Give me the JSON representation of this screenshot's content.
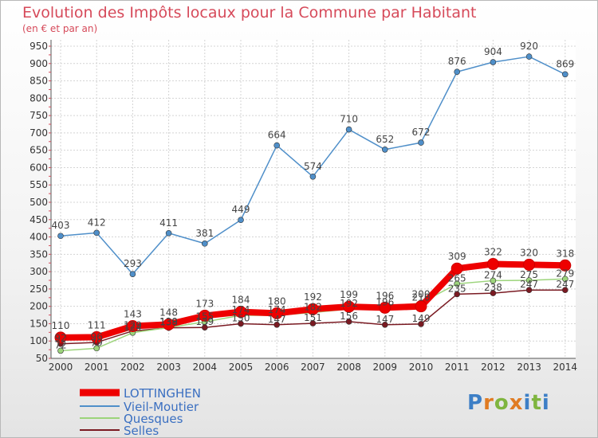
{
  "title": "Evolution des Impôts locaux pour la Commune par Habitant",
  "subtitle": "(en € et par an)",
  "logo": "Proxiti",
  "logo_colors": [
    "#3d7fc6",
    "#e07b22",
    "#7fb53f",
    "#e07b22",
    "#3d7fc6",
    "#7fb53f",
    "#3d7fc6"
  ],
  "chart_data": {
    "type": "line",
    "title": "Evolution des Impôts locaux pour la Commune par Habitant",
    "subtitle": "(en € et par an)",
    "xlabel": "",
    "ylabel": "",
    "ylim": [
      50,
      950
    ],
    "yticks": [
      50,
      100,
      150,
      200,
      250,
      300,
      350,
      400,
      450,
      500,
      550,
      600,
      650,
      700,
      750,
      800,
      850,
      900,
      950
    ],
    "x": [
      "2000",
      "2001",
      "2002",
      "2003",
      "2004",
      "2005",
      "2006",
      "2007",
      "2008",
      "2009",
      "2010",
      "2011",
      "2012",
      "2013",
      "2014"
    ],
    "legend_position": "bottom-left",
    "series": [
      {
        "name": "LOTTINGHEN",
        "color": "#ee0000",
        "values": [
          110,
          111,
          143,
          148,
          173,
          184,
          180,
          192,
          199,
          196,
          200,
          309,
          322,
          320,
          318
        ],
        "labels": [
          "110",
          "111",
          "143",
          "148",
          "173",
          "184",
          "180",
          "192",
          "199",
          "196",
          "200",
          "309",
          "322",
          "320",
          "318"
        ]
      },
      {
        "name": "Vieil-Moutier",
        "color": "#4f8fc9",
        "values": [
          403,
          412,
          293,
          411,
          381,
          449,
          664,
          574,
          710,
          652,
          672,
          876,
          904,
          920,
          869
        ],
        "labels": [
          "403",
          "412",
          "293",
          "411",
          "381",
          "449",
          "664",
          "574",
          "710",
          "652",
          "672",
          "876",
          "904",
          "920",
          "869"
        ]
      },
      {
        "name": "Quesques",
        "color": "#9cd47b",
        "values": [
          72,
          79,
          124,
          139,
          155,
          174,
          174,
          182,
          192,
          196,
          210,
          265,
          274,
          275,
          279
        ],
        "labels": [
          "72",
          "79",
          "124",
          "139",
          "155",
          "174",
          "174",
          "182",
          "192",
          "196",
          "210",
          "265",
          "274",
          "275",
          "279"
        ]
      },
      {
        "name": "Selles",
        "color": "#7a1a22",
        "values": [
          92,
          96,
          129,
          138,
          139,
          150,
          147,
          151,
          156,
          147,
          149,
          235,
          238,
          247,
          247
        ],
        "labels": [
          "92",
          "96",
          "129",
          "138",
          "139",
          "150",
          "147",
          "151",
          "156",
          "147",
          "149",
          "235",
          "238",
          "247",
          "247"
        ]
      }
    ]
  }
}
